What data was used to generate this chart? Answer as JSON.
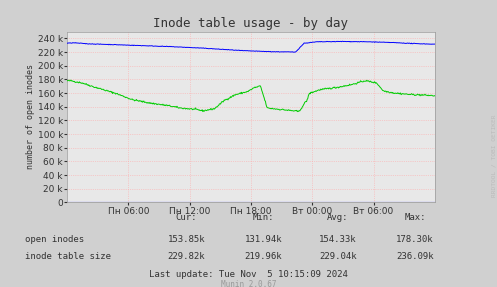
{
  "title": "Inode table usage - by day",
  "ylabel": "number of open inodes",
  "background_color": "#d0d0d0",
  "plot_bg_color": "#e8e8e8",
  "grid_color": "#ffaaaa",
  "ylim": [
    0,
    250000
  ],
  "yticks": [
    0,
    20000,
    40000,
    60000,
    80000,
    100000,
    120000,
    140000,
    160000,
    180000,
    200000,
    220000,
    240000
  ],
  "xtick_labels": [
    "Пн 06:00",
    "Пн 12:00",
    "Пн 18:00",
    "Вт 00:00",
    "Вт 06:00"
  ],
  "stats": {
    "open_inodes": {
      "cur": "153.85k",
      "min": "131.94k",
      "avg": "154.33k",
      "max": "178.30k"
    },
    "inode_table": {
      "cur": "229.82k",
      "min": "219.96k",
      "avg": "229.04k",
      "max": "236.09k"
    }
  },
  "footer": "Last update: Tue Nov  5 10:15:09 2024",
  "munin_version": "Munin 2.0.67",
  "watermark": "RRDTOOL / TOBI OETIKER",
  "open_inodes_color": "#00cc00",
  "inode_table_color": "#0000ff",
  "text_color": "#333333",
  "watermark_color": "#bbbbbb"
}
